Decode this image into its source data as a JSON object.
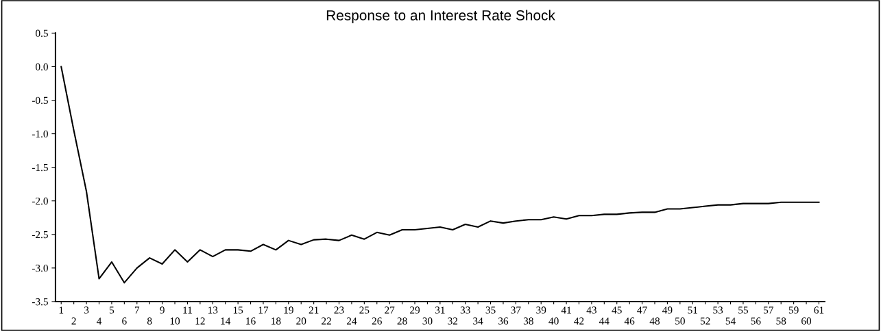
{
  "chart_data": {
    "type": "line",
    "title": "Response to an Interest Rate Shock",
    "categories": [
      "1",
      "2",
      "3",
      "4",
      "5",
      "6",
      "7",
      "8",
      "9",
      "10",
      "11",
      "12",
      "13",
      "14",
      "15",
      "16",
      "17",
      "18",
      "19",
      "20",
      "21",
      "22",
      "23",
      "24",
      "25",
      "26",
      "27",
      "28",
      "29",
      "30",
      "31",
      "32",
      "33",
      "34",
      "35",
      "36",
      "37",
      "38",
      "39",
      "40",
      "41",
      "42",
      "43",
      "44",
      "45",
      "46",
      "47",
      "48",
      "49",
      "50",
      "51",
      "52",
      "53",
      "54",
      "55",
      "56",
      "57",
      "58",
      "59",
      "60",
      "61"
    ],
    "series": [
      {
        "color": "#000000",
        "values": [
          0.0,
          -0.95,
          -1.86,
          -3.16,
          -2.91,
          -3.22,
          -3.0,
          -2.85,
          -2.94,
          -2.73,
          -2.91,
          -2.73,
          -2.83,
          -2.73,
          -2.73,
          -2.75,
          -2.65,
          -2.73,
          -2.59,
          -2.65,
          -2.58,
          -2.57,
          -2.59,
          -2.51,
          -2.57,
          -2.47,
          -2.51,
          -2.43,
          -2.43,
          -2.41,
          -2.39,
          -2.43,
          -2.35,
          -2.39,
          -2.3,
          -2.33,
          -2.3,
          -2.28,
          -2.28,
          -2.24,
          -2.27,
          -2.22,
          -2.22,
          -2.2,
          -2.2,
          -2.18,
          -2.17,
          -2.17,
          -2.12,
          -2.12,
          -2.1,
          -2.08,
          -2.06,
          -2.06,
          -2.04,
          -2.04,
          -2.04,
          -2.02,
          -2.02,
          -2.02,
          -2.02
        ]
      }
    ],
    "ylim": [
      -3.5,
      0.5
    ],
    "yticks": [
      {
        "value": -3.5,
        "label": "-3.5"
      },
      {
        "value": -3.0,
        "label": "-3.0"
      },
      {
        "value": -2.5,
        "label": "-2.5"
      },
      {
        "value": -2.0,
        "label": "-2.0"
      },
      {
        "value": -1.5,
        "label": "-1.5"
      },
      {
        "value": -1.0,
        "label": "-1.0"
      },
      {
        "value": -0.5,
        "label": "-0.5"
      },
      {
        "value": 0.0,
        "label": "0.0"
      },
      {
        "value": 0.5,
        "label": "0.5"
      }
    ],
    "grid": false,
    "legend": false,
    "marker": "none",
    "line_style": "solid"
  }
}
